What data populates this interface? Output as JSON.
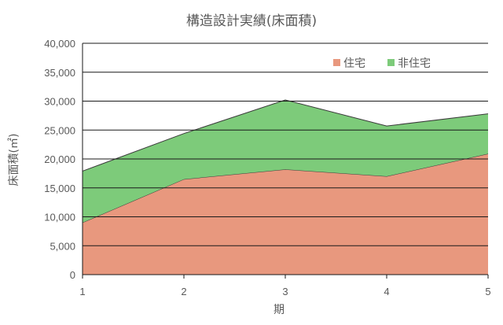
{
  "chart_data": {
    "type": "area",
    "stacked": true,
    "title": "構造設計実績(床面積)",
    "xlabel": "期",
    "ylabel": "床面積(㎡)",
    "categories": [
      "1",
      "2",
      "3",
      "4",
      "5"
    ],
    "ylim": [
      0,
      40000
    ],
    "yticks": [
      0,
      5000,
      10000,
      15000,
      20000,
      25000,
      30000,
      35000,
      40000
    ],
    "ytick_labels": [
      "0",
      "5,000",
      "10,000",
      "15,000",
      "20,000",
      "25,000",
      "30,000",
      "35,000",
      "40,000"
    ],
    "grid": true,
    "legend_position": "top-right",
    "series": [
      {
        "name": "住宅",
        "values": [
          9000,
          16500,
          18200,
          17000,
          20900
        ],
        "color": "#E8987E"
      },
      {
        "name": "非住宅",
        "values": [
          8900,
          7900,
          12000,
          8700,
          6900
        ],
        "color": "#7DCB7A"
      }
    ]
  }
}
